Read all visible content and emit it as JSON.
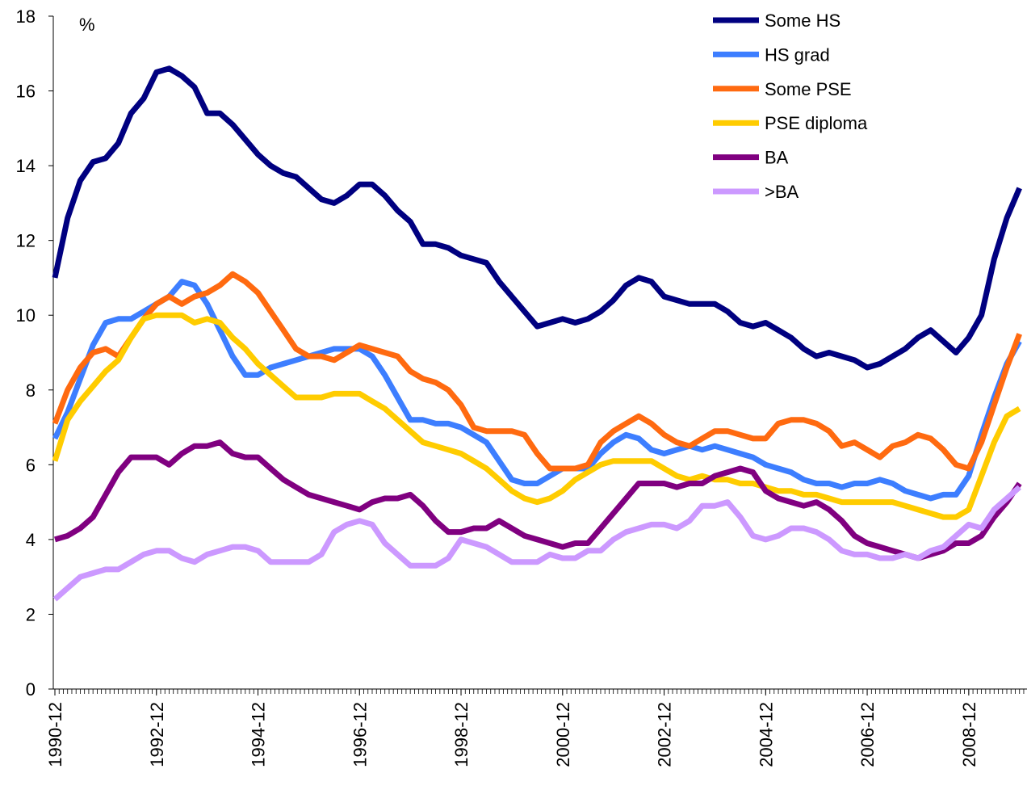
{
  "chart_data": {
    "type": "line",
    "y_axis_label": "%",
    "categories": [
      "1990-12",
      null,
      null,
      null,
      null,
      null,
      null,
      null,
      "1992-12",
      null,
      null,
      null,
      null,
      null,
      null,
      null,
      "1994-12",
      null,
      null,
      null,
      null,
      null,
      null,
      null,
      "1996-12",
      null,
      null,
      null,
      null,
      null,
      null,
      null,
      "1998-12",
      null,
      null,
      null,
      null,
      null,
      null,
      null,
      "2000-12",
      null,
      null,
      null,
      null,
      null,
      null,
      null,
      "2002-12",
      null,
      null,
      null,
      null,
      null,
      null,
      null,
      "2004-12",
      null,
      null,
      null,
      null,
      null,
      null,
      null,
      "2006-12",
      null,
      null,
      null,
      null,
      null,
      null,
      null,
      "2008-12",
      null,
      null,
      null,
      null
    ],
    "ylim": [
      0,
      18
    ],
    "yticks": [
      0,
      2,
      4,
      6,
      8,
      10,
      12,
      14,
      16,
      18
    ],
    "legend": "upper right",
    "series": [
      {
        "name": "Some HS",
        "color": "#000080",
        "values": [
          11.0,
          12.6,
          13.6,
          14.1,
          14.2,
          14.6,
          15.4,
          15.8,
          16.5,
          16.6,
          16.4,
          16.1,
          15.4,
          15.4,
          15.1,
          14.7,
          14.3,
          14.0,
          13.8,
          13.7,
          13.4,
          13.1,
          13.0,
          13.2,
          13.5,
          13.5,
          13.2,
          12.8,
          12.5,
          11.9,
          11.9,
          11.8,
          11.6,
          11.5,
          11.4,
          10.9,
          10.5,
          10.1,
          9.7,
          9.8,
          9.9,
          9.8,
          9.9,
          10.1,
          10.4,
          10.8,
          11.0,
          10.9,
          10.5,
          10.4,
          10.3,
          10.3,
          10.3,
          10.1,
          9.8,
          9.7,
          9.8,
          9.6,
          9.4,
          9.1,
          8.9,
          9.0,
          8.9,
          8.8,
          8.6,
          8.7,
          8.9,
          9.1,
          9.4,
          9.6,
          9.3,
          9.0,
          9.4,
          10.0,
          11.5,
          12.6,
          13.4
        ]
      },
      {
        "name": "HS grad",
        "color": "#3d7eff",
        "values": [
          6.7,
          7.4,
          8.3,
          9.2,
          9.8,
          9.9,
          9.9,
          10.1,
          10.3,
          10.5,
          10.9,
          10.8,
          10.3,
          9.6,
          8.9,
          8.4,
          8.4,
          8.6,
          8.7,
          8.8,
          8.9,
          9.0,
          9.1,
          9.1,
          9.1,
          8.9,
          8.4,
          7.8,
          7.2,
          7.2,
          7.1,
          7.1,
          7.0,
          6.8,
          6.6,
          6.1,
          5.6,
          5.5,
          5.5,
          5.7,
          5.9,
          5.9,
          5.9,
          6.3,
          6.6,
          6.8,
          6.7,
          6.4,
          6.3,
          6.4,
          6.5,
          6.4,
          6.5,
          6.4,
          6.3,
          6.2,
          6.0,
          5.9,
          5.8,
          5.6,
          5.5,
          5.5,
          5.4,
          5.5,
          5.5,
          5.6,
          5.5,
          5.3,
          5.2,
          5.1,
          5.2,
          5.2,
          5.7,
          6.8,
          7.8,
          8.7,
          9.3
        ]
      },
      {
        "name": "Some PSE",
        "color": "#ff6a10",
        "values": [
          7.1,
          8.0,
          8.6,
          9.0,
          9.1,
          8.9,
          9.4,
          9.9,
          10.3,
          10.5,
          10.3,
          10.5,
          10.6,
          10.8,
          11.1,
          10.9,
          10.6,
          10.1,
          9.6,
          9.1,
          8.9,
          8.9,
          8.8,
          9.0,
          9.2,
          9.1,
          9.0,
          8.9,
          8.5,
          8.3,
          8.2,
          8.0,
          7.6,
          7.0,
          6.9,
          6.9,
          6.9,
          6.8,
          6.3,
          5.9,
          5.9,
          5.9,
          6.0,
          6.6,
          6.9,
          7.1,
          7.3,
          7.1,
          6.8,
          6.6,
          6.5,
          6.7,
          6.9,
          6.9,
          6.8,
          6.7,
          6.7,
          7.1,
          7.2,
          7.2,
          7.1,
          6.9,
          6.5,
          6.6,
          6.4,
          6.2,
          6.5,
          6.6,
          6.8,
          6.7,
          6.4,
          6.0,
          5.9,
          6.6,
          7.6,
          8.6,
          9.5
        ]
      },
      {
        "name": "PSE diploma",
        "color": "#ffcc00",
        "values": [
          6.1,
          7.2,
          7.7,
          8.1,
          8.5,
          8.8,
          9.4,
          9.9,
          10.0,
          10.0,
          10.0,
          9.8,
          9.9,
          9.8,
          9.4,
          9.1,
          8.7,
          8.4,
          8.1,
          7.8,
          7.8,
          7.8,
          7.9,
          7.9,
          7.9,
          7.7,
          7.5,
          7.2,
          6.9,
          6.6,
          6.5,
          6.4,
          6.3,
          6.1,
          5.9,
          5.6,
          5.3,
          5.1,
          5.0,
          5.1,
          5.3,
          5.6,
          5.8,
          6.0,
          6.1,
          6.1,
          6.1,
          6.1,
          5.9,
          5.7,
          5.6,
          5.7,
          5.6,
          5.6,
          5.5,
          5.5,
          5.4,
          5.3,
          5.3,
          5.2,
          5.2,
          5.1,
          5.0,
          5.0,
          5.0,
          5.0,
          5.0,
          4.9,
          4.8,
          4.7,
          4.6,
          4.6,
          4.8,
          5.7,
          6.6,
          7.3,
          7.5
        ]
      },
      {
        "name": "BA",
        "color": "#800080",
        "values": [
          4.0,
          4.1,
          4.3,
          4.6,
          5.2,
          5.8,
          6.2,
          6.2,
          6.2,
          6.0,
          6.3,
          6.5,
          6.5,
          6.6,
          6.3,
          6.2,
          6.2,
          5.9,
          5.6,
          5.4,
          5.2,
          5.1,
          5.0,
          4.9,
          4.8,
          5.0,
          5.1,
          5.1,
          5.2,
          4.9,
          4.5,
          4.2,
          4.2,
          4.3,
          4.3,
          4.5,
          4.3,
          4.1,
          4.0,
          3.9,
          3.8,
          3.9,
          3.9,
          4.3,
          4.7,
          5.1,
          5.5,
          5.5,
          5.5,
          5.4,
          5.5,
          5.5,
          5.7,
          5.8,
          5.9,
          5.8,
          5.3,
          5.1,
          5.0,
          4.9,
          5.0,
          4.8,
          4.5,
          4.1,
          3.9,
          3.8,
          3.7,
          3.6,
          3.5,
          3.6,
          3.7,
          3.9,
          3.9,
          4.1,
          4.6,
          5.0,
          5.5
        ]
      },
      {
        "name": ">BA",
        "color": "#cc99ff",
        "values": [
          2.4,
          2.7,
          3.0,
          3.1,
          3.2,
          3.2,
          3.4,
          3.6,
          3.7,
          3.7,
          3.5,
          3.4,
          3.6,
          3.7,
          3.8,
          3.8,
          3.7,
          3.4,
          3.4,
          3.4,
          3.4,
          3.6,
          4.2,
          4.4,
          4.5,
          4.4,
          3.9,
          3.6,
          3.3,
          3.3,
          3.3,
          3.5,
          4.0,
          3.9,
          3.8,
          3.6,
          3.4,
          3.4,
          3.4,
          3.6,
          3.5,
          3.5,
          3.7,
          3.7,
          4.0,
          4.2,
          4.3,
          4.4,
          4.4,
          4.3,
          4.5,
          4.9,
          4.9,
          5.0,
          4.6,
          4.1,
          4.0,
          4.1,
          4.3,
          4.3,
          4.2,
          4.0,
          3.7,
          3.6,
          3.6,
          3.5,
          3.5,
          3.6,
          3.5,
          3.7,
          3.8,
          4.1,
          4.4,
          4.3,
          4.8,
          5.1,
          5.4
        ]
      }
    ]
  }
}
